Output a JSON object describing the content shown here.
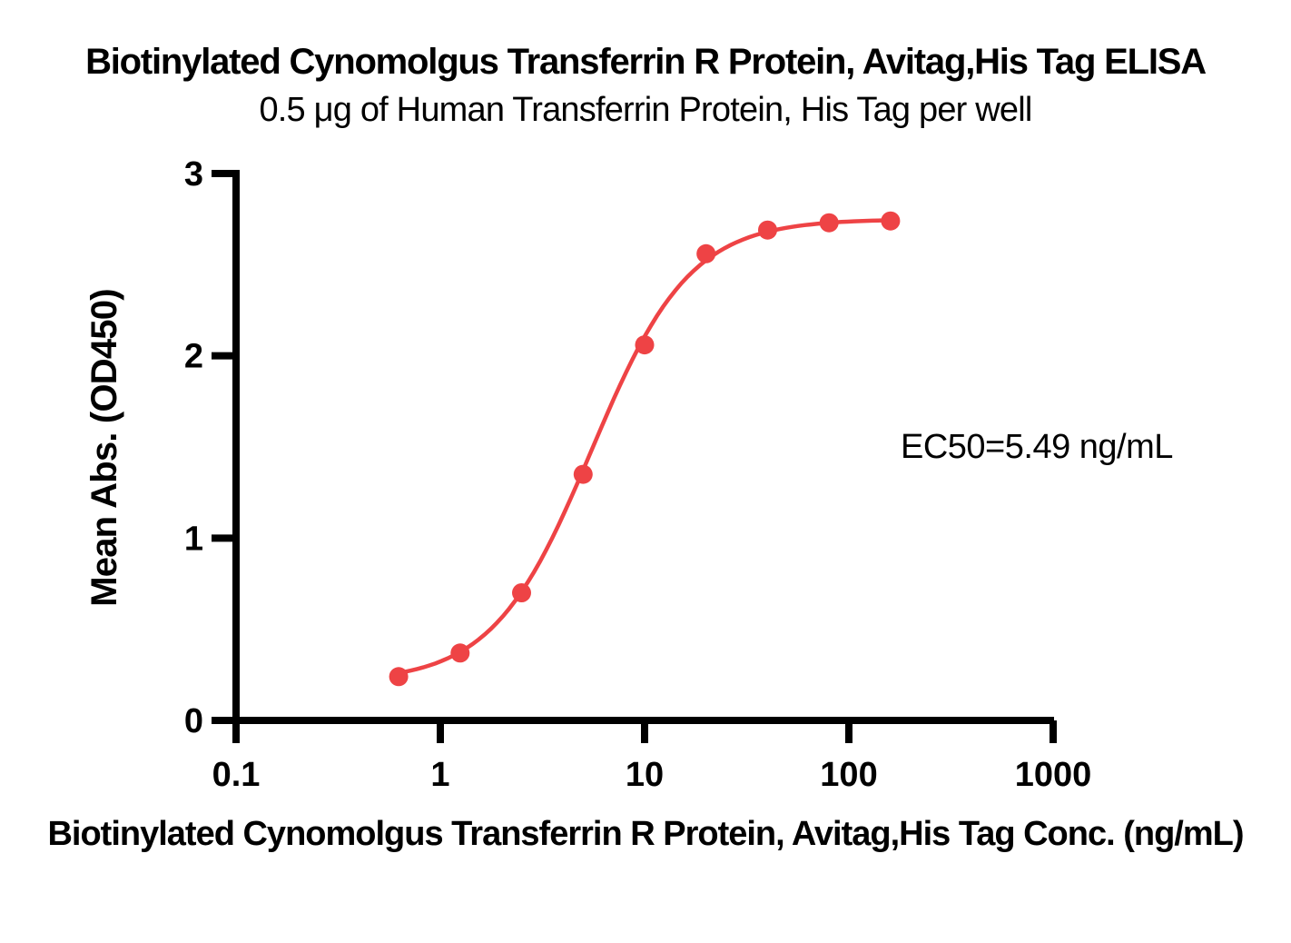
{
  "title": "Biotinylated Cynomolgus Transferrin R Protein, Avitag,His Tag ELISA",
  "subtitle": "0.5 μg of Human Transferrin Protein, His Tag per well",
  "annotation": {
    "ec50_label": "EC50=5.49 ng/mL"
  },
  "chart_data": {
    "type": "scatter",
    "title": "Biotinylated Cynomolgus Transferrin R Protein, Avitag,His Tag ELISA",
    "subtitle": "0.5 μg of Human Transferrin Protein, His Tag per well",
    "xlabel": "Biotinylated Cynomolgus Transferrin R Protein, Avitag,His Tag Conc. (ng/mL)",
    "ylabel": "Mean Abs. (OD450)",
    "x_scale": "log10",
    "xlim": [
      0.1,
      1000
    ],
    "ylim": [
      0,
      3
    ],
    "x_ticks": [
      "0.1",
      "1",
      "10",
      "100",
      "1000"
    ],
    "y_ticks": [
      "0",
      "1",
      "2",
      "3"
    ],
    "grid": false,
    "legend": null,
    "series": [
      {
        "name": "Biotinylated Cynomolgus Transferrin R, Avitag,His Tag",
        "x": [
          0.625,
          1.25,
          2.5,
          5,
          10,
          20,
          40,
          80,
          160
        ],
        "y": [
          0.24,
          0.37,
          0.7,
          1.35,
          2.06,
          2.56,
          2.69,
          2.73,
          2.74
        ]
      }
    ],
    "curve_fit": {
      "model": "4PL",
      "bottom": 0.21,
      "top": 2.75,
      "ec50": 5.49,
      "hill": 1.8
    },
    "ec50_text": "EC50=5.49 ng/mL",
    "colors": {
      "curve": "#ee4345",
      "marker": "#ee4345",
      "axis": "#000000",
      "text": "#000000",
      "background": "#ffffff"
    }
  }
}
